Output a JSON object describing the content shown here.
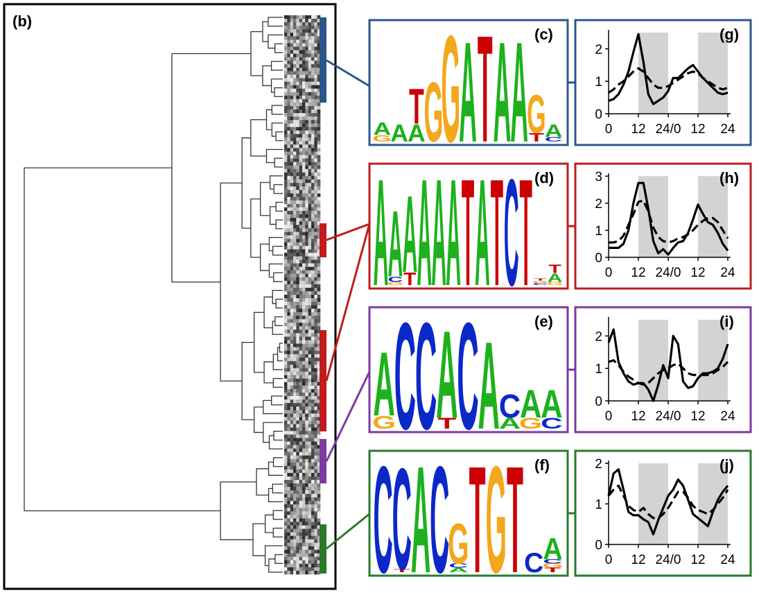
{
  "colors": {
    "blue": "#2a578c",
    "red": "#c01c1c",
    "purple": "#7d3aa0",
    "green": "#2a7a2a",
    "base_A": "#1db11d",
    "base_C": "#0b28c8",
    "base_G": "#f2a71c",
    "base_T": "#cc0000",
    "night": "#d3d3d3"
  },
  "labels": {
    "b": "(b)",
    "c": "(c)",
    "d": "(d)",
    "e": "(e)",
    "f": "(f)",
    "g": "(g)",
    "h": "(h)",
    "i": "(i)",
    "j": "(j)"
  },
  "motifs": [
    {
      "id": "c",
      "color": "blue",
      "columns": [
        [
          [
            "G",
            0.06
          ],
          [
            "A",
            0.12
          ]
        ],
        [
          [
            "A",
            0.16
          ]
        ],
        [
          [
            "A",
            0.16
          ],
          [
            "T",
            0.33
          ]
        ],
        [
          [
            "G",
            0.56
          ]
        ],
        [
          [
            "G",
            1.0
          ]
        ],
        [
          [
            "A",
            0.94
          ]
        ],
        [
          [
            "T",
            1.0
          ]
        ],
        [
          [
            "A",
            0.94
          ]
        ],
        [
          [
            "A",
            0.94
          ]
        ],
        [
          [
            "T",
            0.08
          ],
          [
            "G",
            0.36
          ]
        ],
        [
          [
            "C",
            0.04
          ],
          [
            "A",
            0.12
          ]
        ]
      ]
    },
    {
      "id": "d",
      "color": "red",
      "columns": [
        [
          [
            "A",
            1.0
          ]
        ],
        [
          [
            "G",
            0.03
          ],
          [
            "C",
            0.05
          ],
          [
            "A",
            0.62
          ]
        ],
        [
          [
            "T",
            0.12
          ],
          [
            "A",
            0.72
          ]
        ],
        [
          [
            "A",
            1.0
          ]
        ],
        [
          [
            "A",
            1.0
          ]
        ],
        [
          [
            "A",
            1.0
          ]
        ],
        [
          [
            "T",
            1.0
          ]
        ],
        [
          [
            "A",
            1.0
          ]
        ],
        [
          [
            "T",
            1.0
          ]
        ],
        [
          [
            "C",
            1.0
          ]
        ],
        [
          [
            "T",
            1.0
          ]
        ],
        [
          [
            "C",
            0.02
          ],
          [
            "G",
            0.02
          ],
          [
            "T",
            0.02
          ]
        ],
        [
          [
            "G",
            0.03
          ],
          [
            "A",
            0.08
          ],
          [
            "T",
            0.08
          ]
        ]
      ]
    },
    {
      "id": "e",
      "color": "purple",
      "columns": [
        [
          [
            "G",
            0.12
          ],
          [
            "A",
            0.6
          ]
        ],
        [
          [
            "C",
            1.0
          ]
        ],
        [
          [
            "C",
            1.0
          ]
        ],
        [
          [
            "T",
            0.1
          ],
          [
            "A",
            0.82
          ]
        ],
        [
          [
            "C",
            1.0
          ]
        ],
        [
          [
            "A",
            0.82
          ]
        ],
        [
          [
            "A",
            0.1
          ],
          [
            "C",
            0.22
          ]
        ],
        [
          [
            "G",
            0.1
          ],
          [
            "A",
            0.26
          ]
        ],
        [
          [
            "C",
            0.1
          ],
          [
            "A",
            0.26
          ]
        ]
      ]
    },
    {
      "id": "f",
      "color": "green",
      "columns": [
        [
          [
            "C",
            1.0
          ]
        ],
        [
          [
            "T",
            0.03
          ],
          [
            "C",
            0.95
          ]
        ],
        [
          [
            "A",
            1.0
          ]
        ],
        [
          [
            "C",
            1.0
          ]
        ],
        [
          [
            "A",
            0.04
          ],
          [
            "C",
            0.04
          ],
          [
            "G",
            0.38
          ]
        ],
        [
          [
            "T",
            1.0
          ]
        ],
        [
          [
            "G",
            1.0
          ]
        ],
        [
          [
            "T",
            1.0
          ]
        ],
        [
          [
            "C",
            0.18
          ]
        ],
        [
          [
            "T",
            0.04
          ],
          [
            "G",
            0.04
          ],
          [
            "C",
            0.04
          ],
          [
            "A",
            0.2
          ]
        ]
      ]
    }
  ],
  "chart_data": [
    {
      "id": "g",
      "type": "line",
      "color": "blue",
      "x": [
        0,
        2,
        4,
        6,
        8,
        10,
        12,
        14,
        16,
        18,
        20,
        22,
        24,
        26,
        28,
        30,
        32,
        34,
        36,
        38,
        40,
        42,
        44,
        46,
        48
      ],
      "x_ticks": [
        "0",
        "12",
        "24/0",
        "12",
        "24"
      ],
      "x_tick_pos": [
        0,
        12,
        24,
        36,
        48
      ],
      "y_ticks": [
        "0",
        "1",
        "2"
      ],
      "ylim": [
        0,
        2.5
      ],
      "night": [
        [
          12,
          24
        ],
        [
          36,
          48
        ]
      ],
      "series": [
        {
          "style": "solid",
          "values": [
            0.4,
            0.45,
            0.6,
            0.9,
            1.3,
            1.9,
            2.45,
            1.6,
            0.6,
            0.3,
            0.4,
            0.5,
            0.7,
            1.1,
            1.1,
            1.25,
            1.4,
            1.5,
            1.3,
            1.1,
            0.95,
            0.8,
            0.65,
            0.6,
            0.65
          ]
        },
        {
          "style": "dashed",
          "values": [
            0.65,
            0.75,
            0.9,
            1.0,
            1.15,
            1.3,
            1.4,
            1.3,
            1.1,
            0.9,
            0.8,
            0.8,
            0.85,
            0.95,
            1.05,
            1.15,
            1.25,
            1.3,
            1.25,
            1.1,
            1.0,
            0.9,
            0.8,
            0.75,
            0.8
          ]
        }
      ]
    },
    {
      "id": "h",
      "type": "line",
      "color": "red",
      "x": [
        0,
        2,
        4,
        6,
        8,
        10,
        12,
        14,
        16,
        18,
        20,
        22,
        24,
        26,
        28,
        30,
        32,
        34,
        36,
        38,
        40,
        42,
        44,
        46,
        48
      ],
      "x_ticks": [
        "0",
        "12",
        "24/0",
        "12",
        "24"
      ],
      "x_tick_pos": [
        0,
        12,
        24,
        36,
        48
      ],
      "y_ticks": [
        "0",
        "1",
        "2",
        "3"
      ],
      "ylim": [
        0,
        3.0
      ],
      "night": [
        [
          12,
          24
        ],
        [
          36,
          48
        ]
      ],
      "series": [
        {
          "style": "solid",
          "values": [
            0.35,
            0.35,
            0.35,
            0.5,
            1.0,
            2.0,
            2.75,
            2.75,
            1.8,
            0.6,
            0.15,
            0.3,
            0.1,
            0.35,
            0.55,
            0.6,
            0.9,
            1.4,
            1.95,
            1.6,
            1.3,
            1.2,
            0.9,
            0.5,
            0.25
          ]
        },
        {
          "style": "dashed",
          "values": [
            0.55,
            0.55,
            0.6,
            0.8,
            1.2,
            1.6,
            2.05,
            2.1,
            1.7,
            1.1,
            0.75,
            0.6,
            0.55,
            0.6,
            0.7,
            0.75,
            0.85,
            1.0,
            1.2,
            1.35,
            1.45,
            1.45,
            1.3,
            1.0,
            0.7
          ]
        }
      ]
    },
    {
      "id": "i",
      "type": "line",
      "color": "purple",
      "x": [
        0,
        2,
        4,
        6,
        8,
        10,
        12,
        14,
        16,
        18,
        20,
        22,
        24,
        26,
        28,
        30,
        32,
        34,
        36,
        38,
        40,
        42,
        44,
        46,
        48
      ],
      "x_ticks": [
        "0",
        "12",
        "24/0",
        "12",
        "24"
      ],
      "x_tick_pos": [
        0,
        12,
        24,
        36,
        48
      ],
      "y_ticks": [
        "0",
        "1",
        "2"
      ],
      "ylim": [
        0,
        2.5
      ],
      "night": [
        [
          12,
          24
        ],
        [
          36,
          48
        ]
      ],
      "series": [
        {
          "style": "solid",
          "values": [
            1.8,
            2.2,
            1.2,
            0.85,
            0.6,
            0.5,
            0.55,
            0.55,
            0.35,
            0.0,
            0.5,
            1.1,
            0.7,
            2.0,
            1.75,
            0.6,
            0.4,
            0.45,
            0.7,
            0.85,
            0.85,
            0.9,
            1.0,
            1.3,
            1.75
          ]
        },
        {
          "style": "dashed",
          "values": [
            1.2,
            1.25,
            1.1,
            0.9,
            0.75,
            0.65,
            0.55,
            0.5,
            0.55,
            0.7,
            0.85,
            0.95,
            1.0,
            1.1,
            1.15,
            1.0,
            0.85,
            0.8,
            0.8,
            0.8,
            0.8,
            0.85,
            0.95,
            1.05,
            1.2
          ]
        }
      ]
    },
    {
      "id": "j",
      "type": "line",
      "color": "green",
      "x": [
        0,
        2,
        4,
        6,
        8,
        10,
        12,
        14,
        16,
        18,
        20,
        22,
        24,
        26,
        28,
        30,
        32,
        34,
        36,
        38,
        40,
        42,
        44,
        46,
        48
      ],
      "x_ticks": [
        "0",
        "12",
        "24",
        "24/0",
        "12",
        "24"
      ],
      "x_tick_pos": [
        0,
        12,
        24,
        24,
        36,
        48
      ],
      "y_ticks": [
        "0",
        "1",
        "2"
      ],
      "ylim": [
        0,
        2.0
      ],
      "night": [
        [
          12,
          24
        ],
        [
          36,
          48
        ]
      ],
      "series": [
        {
          "style": "solid",
          "values": [
            1.2,
            1.75,
            1.85,
            1.35,
            0.8,
            0.72,
            0.72,
            0.62,
            0.55,
            0.25,
            0.6,
            0.9,
            1.2,
            1.35,
            1.6,
            1.45,
            1.1,
            0.75,
            0.65,
            0.55,
            0.45,
            0.8,
            1.1,
            1.3,
            1.45
          ]
        },
        {
          "style": "dashed",
          "values": [
            1.2,
            1.35,
            1.45,
            1.2,
            0.95,
            0.85,
            0.8,
            0.9,
            0.75,
            0.65,
            0.65,
            0.75,
            0.9,
            1.1,
            1.3,
            1.3,
            1.15,
            0.95,
            0.85,
            0.8,
            0.75,
            0.85,
            1.0,
            1.15,
            1.35
          ]
        }
      ]
    }
  ]
}
